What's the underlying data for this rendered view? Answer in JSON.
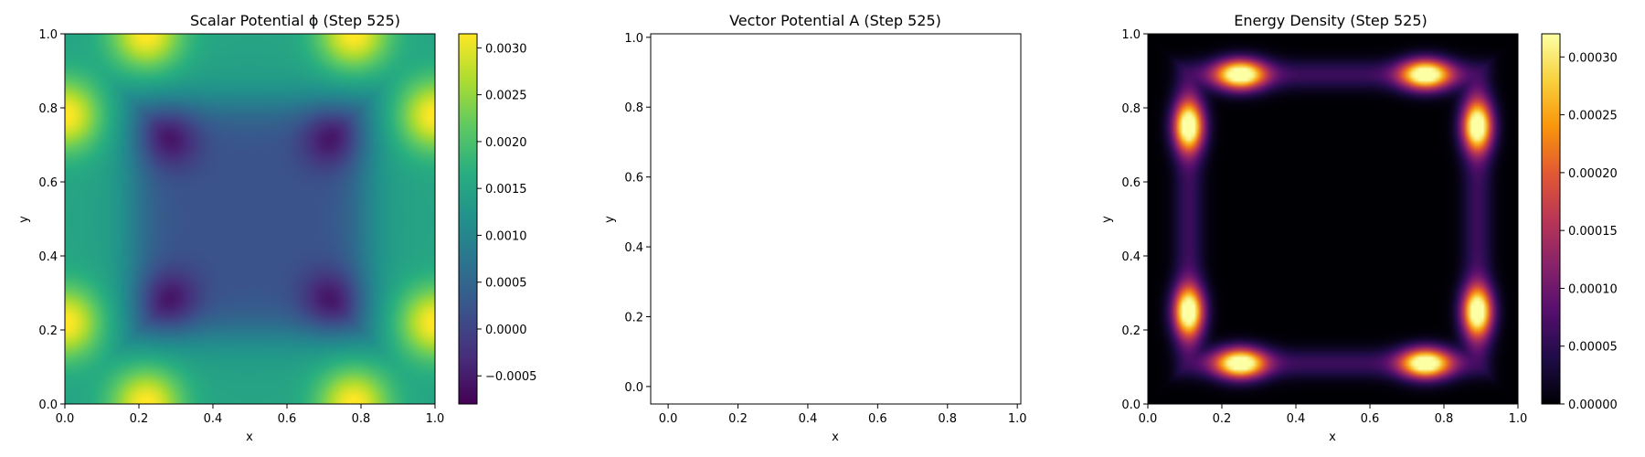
{
  "chart_data": [
    {
      "type": "heatmap",
      "title": "Scalar Potential ϕ (Step 525)",
      "xlabel": "x",
      "ylabel": "y",
      "xlim": [
        0.0,
        1.0
      ],
      "ylim": [
        0.0,
        1.0
      ],
      "xticks": [
        "0.0",
        "0.2",
        "0.4",
        "0.6",
        "0.8",
        "1.0"
      ],
      "yticks": [
        "0.0",
        "0.2",
        "0.4",
        "0.6",
        "0.8",
        "1.0"
      ],
      "colormap": "viridis",
      "colorbar": {
        "min": -0.0008,
        "max": 0.00315,
        "ticks": [
          -0.0005,
          0.0,
          0.0005,
          0.001,
          0.0015,
          0.002,
          0.0025,
          0.003
        ],
        "tick_labels": [
          "−0.0005",
          "0.0000",
          "0.0005",
          "0.0010",
          "0.0015",
          "0.0020",
          "0.0025",
          "0.0030"
        ]
      },
      "field_summary": {
        "minima_at": [
          [
            0.28,
            0.28
          ],
          [
            0.72,
            0.28
          ],
          [
            0.28,
            0.72
          ],
          [
            0.72,
            0.72
          ]
        ],
        "maxima_at": [
          [
            0.22,
            0.0
          ],
          [
            0.78,
            0.0
          ],
          [
            0.22,
            1.0
          ],
          [
            0.78,
            1.0
          ],
          [
            0.0,
            0.22
          ],
          [
            0.0,
            0.78
          ],
          [
            1.0,
            0.22
          ],
          [
            1.0,
            0.78
          ]
        ]
      }
    },
    {
      "type": "scatter",
      "title": "Vector Potential A (Step 525)",
      "xlabel": "x",
      "ylabel": "y",
      "xlim": [
        -0.05,
        1.01
      ],
      "ylim": [
        -0.05,
        1.01
      ],
      "xticks": [
        "0.0",
        "0.2",
        "0.4",
        "0.6",
        "0.8",
        "1.0"
      ],
      "yticks": [
        "0.0",
        "0.2",
        "0.4",
        "0.6",
        "0.8",
        "1.0"
      ],
      "series": []
    },
    {
      "type": "heatmap",
      "title": "Energy Density (Step 525)",
      "xlabel": "x",
      "ylabel": "y",
      "xlim": [
        0.0,
        1.0
      ],
      "ylim": [
        0.0,
        1.0
      ],
      "xticks": [
        "0.0",
        "0.2",
        "0.4",
        "0.6",
        "0.8",
        "1.0"
      ],
      "yticks": [
        "0.0",
        "0.2",
        "0.4",
        "0.6",
        "0.8",
        "1.0"
      ],
      "colormap": "inferno",
      "colorbar": {
        "min": 0.0,
        "max": 0.00032,
        "ticks": [
          0.0,
          5e-05,
          0.0001,
          0.00015,
          0.0002,
          0.00025,
          0.0003
        ],
        "tick_labels": [
          "0.00000",
          "0.00005",
          "0.00010",
          "0.00015",
          "0.00020",
          "0.00025",
          "0.00030"
        ]
      },
      "field_summary": {
        "peaks_at": [
          [
            0.25,
            0.11
          ],
          [
            0.75,
            0.11
          ],
          [
            0.25,
            0.89
          ],
          [
            0.75,
            0.89
          ],
          [
            0.11,
            0.25
          ],
          [
            0.89,
            0.25
          ],
          [
            0.11,
            0.75
          ],
          [
            0.89,
            0.75
          ]
        ]
      }
    }
  ]
}
